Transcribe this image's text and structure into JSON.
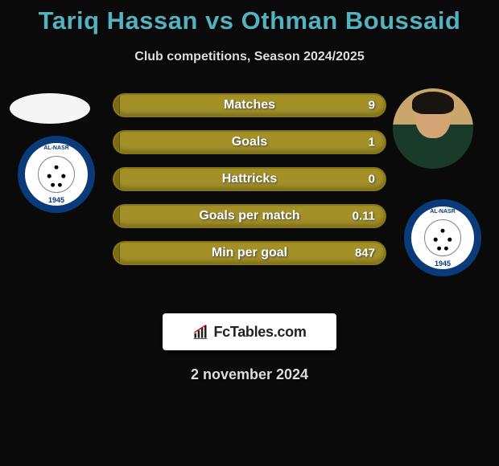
{
  "title": "Tariq Hassan vs Othman Boussaid",
  "subtitle": "Club competitions, Season 2024/2025",
  "date": "2 november 2024",
  "logo": {
    "text": "FcTables.com"
  },
  "club_badge": {
    "top_text": "AL-NASR",
    "year": "1945"
  },
  "bars": {
    "type": "horizontal-comparison-bars",
    "bar_color": "#a39128",
    "bar_border_color": "#857516",
    "fill_color": "#7a6a14",
    "label_color": "#ffffff",
    "label_fontsize": 16,
    "value_fontsize": 15,
    "rows": [
      {
        "label": "Matches",
        "left": null,
        "right": "9",
        "left_fill_pct": 2
      },
      {
        "label": "Goals",
        "left": null,
        "right": "1",
        "left_fill_pct": 2
      },
      {
        "label": "Hattricks",
        "left": null,
        "right": "0",
        "left_fill_pct": 2
      },
      {
        "label": "Goals per match",
        "left": null,
        "right": "0.11",
        "left_fill_pct": 2
      },
      {
        "label": "Min per goal",
        "left": null,
        "right": "847",
        "left_fill_pct": 2
      }
    ]
  },
  "colors": {
    "background": "#0a0a0a",
    "title": "#52b2bf",
    "subtitle": "#dddddd",
    "club_outer": "#0a3a7a",
    "club_inner": "#ffffff"
  }
}
